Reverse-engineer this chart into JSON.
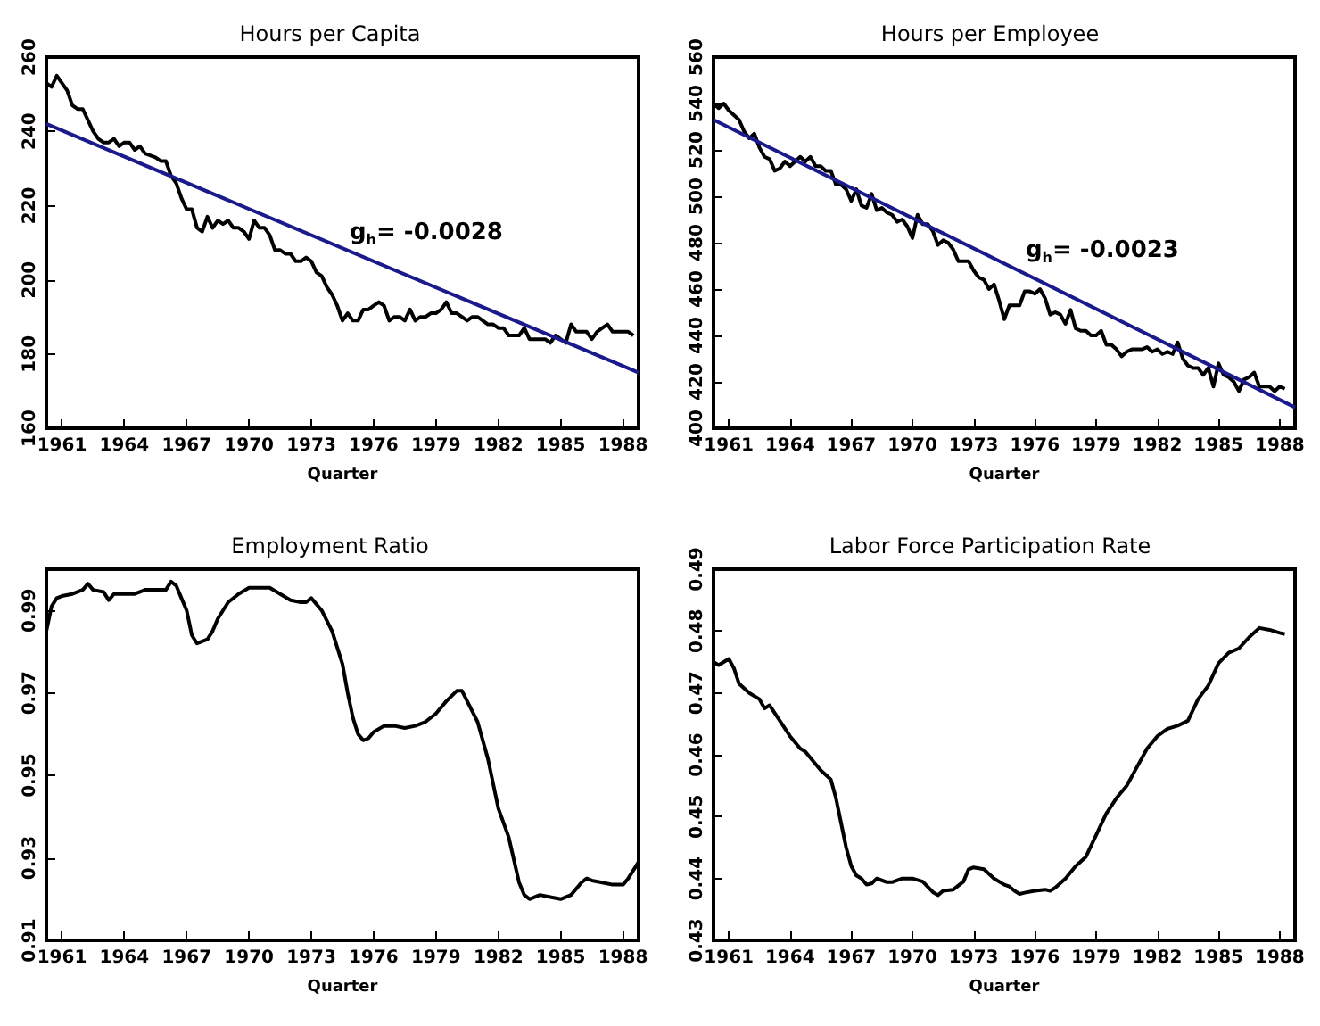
{
  "chart_data": [
    {
      "type": "line",
      "title": "Hours per Capita",
      "xlabel": "Quarter",
      "xlim": [
        1960.25,
        1988.75
      ],
      "xticks": [
        1961,
        1964,
        1967,
        1970,
        1973,
        1976,
        1979,
        1982,
        1985,
        1988
      ],
      "ylim": [
        160,
        260
      ],
      "yticks": [
        160,
        180,
        200,
        220,
        240,
        260
      ],
      "annotations": [
        "g$_{h}$= -0.0028"
      ],
      "series": [
        {
          "color": "#000000",
          "x": [
            1960.25,
            1960.5,
            1960.75,
            1961,
            1961.25,
            1961.5,
            1961.75,
            1962,
            1962.25,
            1962.5,
            1962.75,
            1963,
            1963.25,
            1963.5,
            1963.75,
            1964,
            1964.25,
            1964.5,
            1964.75,
            1965,
            1965.5,
            1965.75,
            1966,
            1966.25,
            1966.5,
            1966.75,
            1967,
            1967.25,
            1967.5,
            1967.75,
            1968,
            1968.25,
            1968.5,
            1968.75,
            1969,
            1969.25,
            1969.5,
            1969.75,
            1970,
            1970.25,
            1970.5,
            1970.75,
            1971,
            1971.25,
            1971.5,
            1971.75,
            1972,
            1972.25,
            1972.5,
            1972.75,
            1973,
            1973.25,
            1973.5,
            1973.75,
            1974,
            1974.25,
            1974.5,
            1974.75,
            1975,
            1975.25,
            1975.5,
            1975.75,
            1976,
            1976.25,
            1976.5,
            1976.75,
            1977,
            1977.25,
            1977.5,
            1977.75,
            1978,
            1978.25,
            1978.5,
            1978.75,
            1979,
            1979.25,
            1979.5,
            1979.75,
            1980,
            1980.25,
            1980.5,
            1980.75,
            1981,
            1981.25,
            1981.5,
            1981.75,
            1982,
            1982.25,
            1982.5,
            1982.75,
            1983,
            1983.25,
            1983.5,
            1983.75,
            1984,
            1984.25,
            1984.5,
            1984.75,
            1985,
            1985.25,
            1985.5,
            1985.75,
            1986,
            1986.25,
            1986.5,
            1986.75,
            1987,
            1987.25,
            1987.5,
            1987.75,
            1988,
            1988.25,
            1988.5
          ],
          "values": [
            253,
            252,
            255,
            253,
            251,
            247,
            246,
            246,
            243,
            240,
            238,
            237,
            237,
            238,
            236,
            237,
            237,
            235,
            236,
            234,
            233,
            232,
            232,
            228,
            226,
            222,
            219,
            219,
            214,
            213,
            217,
            214,
            216,
            215,
            216,
            214,
            214,
            213,
            211,
            216,
            214,
            214,
            212,
            208,
            208,
            207,
            207,
            205,
            205,
            206,
            205,
            202,
            201,
            198,
            196,
            193,
            189,
            191,
            189,
            189,
            192,
            192,
            193,
            194,
            193,
            189,
            190,
            190,
            189,
            192,
            189,
            190,
            190,
            191,
            191,
            192,
            194,
            191,
            191,
            190,
            189,
            190,
            190,
            189,
            188,
            188,
            187,
            187,
            185,
            185,
            185,
            187,
            184,
            184,
            184,
            184,
            183,
            185,
            184,
            183,
            188,
            186,
            186,
            186,
            184,
            186,
            187,
            188,
            186,
            186,
            186,
            186,
            185
          ]
        },
        {
          "color": "#1a1a8c",
          "x": [
            1960.25,
            1988.75
          ],
          "values": [
            242,
            175
          ]
        }
      ]
    },
    {
      "type": "line",
      "title": "Hours per Employee",
      "xlabel": "Quarter",
      "xlim": [
        1960.25,
        1988.75
      ],
      "xticks": [
        1961,
        1964,
        1967,
        1970,
        1973,
        1976,
        1979,
        1982,
        1985,
        1988
      ],
      "ylim": [
        400,
        560
      ],
      "yticks": [
        400,
        420,
        440,
        460,
        480,
        500,
        520,
        540,
        560
      ],
      "annotations": [
        "g$_{h}$= -0.0023"
      ],
      "series": [
        {
          "color": "#000000",
          "x": [
            1960.25,
            1960.5,
            1960.75,
            1961,
            1961.25,
            1961.5,
            1961.75,
            1962,
            1962.25,
            1962.5,
            1962.75,
            1963,
            1963.25,
            1963.5,
            1963.75,
            1964,
            1964.25,
            1964.5,
            1964.75,
            1965,
            1965.25,
            1965.5,
            1965.75,
            1966,
            1966.25,
            1966.5,
            1966.75,
            1967,
            1967.25,
            1967.5,
            1967.75,
            1968,
            1968.25,
            1968.5,
            1968.75,
            1969,
            1969.25,
            1969.5,
            1969.75,
            1970,
            1970.25,
            1970.5,
            1970.75,
            1971,
            1971.25,
            1971.5,
            1971.75,
            1972,
            1972.25,
            1972.5,
            1972.75,
            1973,
            1973.25,
            1973.5,
            1973.75,
            1974,
            1974.25,
            1974.5,
            1974.75,
            1975,
            1975.25,
            1975.5,
            1975.75,
            1976,
            1976.25,
            1976.5,
            1976.75,
            1977,
            1977.25,
            1977.5,
            1977.75,
            1978,
            1978.25,
            1978.5,
            1978.75,
            1979,
            1979.25,
            1979.5,
            1979.75,
            1980,
            1980.25,
            1980.5,
            1980.75,
            1981,
            1981.25,
            1981.5,
            1981.75,
            1982,
            1982.25,
            1982.5,
            1982.75,
            1983,
            1983.25,
            1983.5,
            1983.75,
            1984,
            1984.25,
            1984.5,
            1984.75,
            1985,
            1985.25,
            1985.5,
            1985.75,
            1986,
            1986.25,
            1986.5,
            1986.75,
            1987,
            1987.25,
            1987.5,
            1987.75,
            1988,
            1988.25
          ],
          "values": [
            540,
            538,
            540,
            537,
            535,
            533,
            528,
            525,
            527,
            521,
            517,
            516,
            511,
            512,
            515,
            513,
            515,
            517,
            515,
            517,
            513,
            513,
            511,
            511,
            505,
            505,
            503,
            498,
            503,
            496,
            495,
            501,
            494,
            495,
            493,
            492,
            489,
            490,
            487,
            482,
            492,
            488,
            488,
            485,
            479,
            481,
            480,
            477,
            472,
            472,
            472,
            468,
            465,
            464,
            460,
            462,
            455,
            447,
            453,
            453,
            453,
            459,
            459,
            458,
            460,
            456,
            449,
            450,
            449,
            445,
            451,
            443,
            442,
            442,
            440,
            440,
            442,
            436,
            436,
            434,
            431,
            433,
            434,
            434,
            434,
            435,
            433,
            434,
            432,
            433,
            432,
            437,
            430,
            427,
            426,
            426,
            423,
            426,
            418,
            428,
            423,
            422,
            420,
            416,
            421,
            422,
            424,
            418,
            418,
            418,
            416,
            418,
            417
          ]
        },
        {
          "color": "#1a1a8c",
          "x": [
            1960.25,
            1988.75
          ],
          "values": [
            533,
            409
          ]
        }
      ]
    },
    {
      "type": "line",
      "title": "Employment Ratio",
      "xlabel": "Quarter",
      "xlim": [
        1960.25,
        1988.75
      ],
      "xticks": [
        1961,
        1964,
        1967,
        1970,
        1973,
        1976,
        1979,
        1982,
        1985,
        1988
      ],
      "ylim": [
        0.91,
        1.0
      ],
      "yticks": [
        0.91,
        0.93,
        0.95,
        0.97,
        0.99
      ],
      "series": [
        {
          "color": "#000000",
          "x": [
            1960.25,
            1960.5,
            1960.75,
            1961,
            1961.5,
            1962,
            1962.25,
            1962.5,
            1963,
            1963.25,
            1963.5,
            1964,
            1964.5,
            1965,
            1965.5,
            1966,
            1966.25,
            1966.5,
            1966.75,
            1967,
            1967.25,
            1967.5,
            1968,
            1968.25,
            1968.5,
            1969,
            1969.5,
            1970,
            1970.5,
            1971,
            1971.5,
            1972,
            1972.5,
            1972.75,
            1973,
            1973.5,
            1974,
            1974.5,
            1974.75,
            1975,
            1975.25,
            1975.5,
            1975.75,
            1976,
            1976.5,
            1977,
            1977.5,
            1978,
            1978.5,
            1979,
            1979.5,
            1980,
            1980.25,
            1980.5,
            1981,
            1981.5,
            1982,
            1982.5,
            1983,
            1983.25,
            1983.5,
            1984,
            1984.5,
            1985,
            1985.5,
            1986,
            1986.25,
            1986.5,
            1987,
            1987.5,
            1988,
            1988.25,
            1988.5,
            1988.75
          ],
          "values": [
            0.985,
            0.991,
            0.993,
            0.9935,
            0.994,
            0.995,
            0.9965,
            0.995,
            0.9945,
            0.9925,
            0.994,
            0.994,
            0.994,
            0.995,
            0.995,
            0.995,
            0.997,
            0.996,
            0.993,
            0.99,
            0.984,
            0.982,
            0.983,
            0.985,
            0.988,
            0.992,
            0.994,
            0.9955,
            0.9955,
            0.9955,
            0.994,
            0.9925,
            0.992,
            0.992,
            0.993,
            0.99,
            0.985,
            0.977,
            0.97,
            0.964,
            0.96,
            0.9585,
            0.959,
            0.9605,
            0.962,
            0.962,
            0.9615,
            0.962,
            0.963,
            0.965,
            0.968,
            0.9705,
            0.9705,
            0.968,
            0.963,
            0.954,
            0.942,
            0.935,
            0.924,
            0.921,
            0.92,
            0.921,
            0.9205,
            0.92,
            0.921,
            0.924,
            0.925,
            0.9245,
            0.924,
            0.9235,
            0.9235,
            0.925,
            0.927,
            0.929
          ]
        }
      ]
    },
    {
      "type": "line",
      "title": "Labor Force Participation Rate",
      "xlabel": "Quarter",
      "xlim": [
        1960.25,
        1988.75
      ],
      "xticks": [
        1961,
        1964,
        1967,
        1970,
        1973,
        1976,
        1979,
        1982,
        1985,
        1988
      ],
      "ylim": [
        0.43,
        0.49
      ],
      "yticks": [
        0.43,
        0.44,
        0.45,
        0.46,
        0.47,
        0.48,
        0.49
      ],
      "series": [
        {
          "color": "#000000",
          "x": [
            1960.25,
            1960.5,
            1960.75,
            1961,
            1961.25,
            1961.5,
            1962,
            1962.5,
            1962.75,
            1963,
            1963.5,
            1964,
            1964.5,
            1964.75,
            1965,
            1965.5,
            1966,
            1966.25,
            1966.5,
            1966.75,
            1967,
            1967.25,
            1967.5,
            1967.75,
            1968,
            1968.25,
            1968.5,
            1968.75,
            1969,
            1969.5,
            1970,
            1970.5,
            1971,
            1971.25,
            1971.5,
            1972,
            1972.5,
            1972.75,
            1973,
            1973.5,
            1974,
            1974.5,
            1974.75,
            1975,
            1975.25,
            1975.5,
            1976,
            1976.5,
            1976.75,
            1977,
            1977.5,
            1978,
            1978.5,
            1979,
            1979.5,
            1980,
            1980.5,
            1981,
            1981.5,
            1982,
            1982.5,
            1983,
            1983.5,
            1984,
            1984.5,
            1985,
            1985.5,
            1986,
            1986.5,
            1987,
            1987.5,
            1988,
            1988.25
          ],
          "values": [
            0.475,
            0.4745,
            0.475,
            0.4755,
            0.474,
            0.4715,
            0.47,
            0.469,
            0.4675,
            0.468,
            0.4655,
            0.463,
            0.461,
            0.4605,
            0.4595,
            0.4575,
            0.456,
            0.453,
            0.449,
            0.445,
            0.442,
            0.4405,
            0.44,
            0.439,
            0.4392,
            0.44,
            0.4397,
            0.4394,
            0.4394,
            0.44,
            0.44,
            0.4395,
            0.4378,
            0.4373,
            0.438,
            0.4382,
            0.4395,
            0.4415,
            0.4418,
            0.4415,
            0.44,
            0.439,
            0.4387,
            0.438,
            0.4375,
            0.4377,
            0.438,
            0.4382,
            0.438,
            0.4385,
            0.44,
            0.442,
            0.4435,
            0.447,
            0.4505,
            0.453,
            0.455,
            0.458,
            0.461,
            0.463,
            0.4642,
            0.4647,
            0.4655,
            0.469,
            0.4712,
            0.4748,
            0.4765,
            0.4772,
            0.479,
            0.4805,
            0.4802,
            0.4797,
            0.4795
          ]
        }
      ]
    }
  ]
}
